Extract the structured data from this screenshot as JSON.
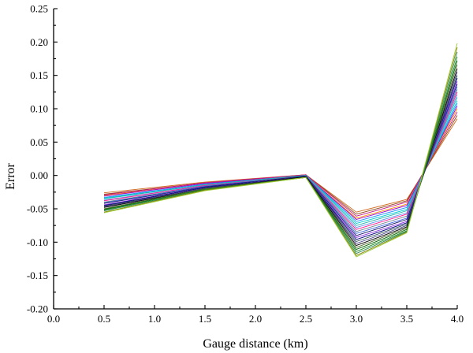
{
  "chart_data": {
    "type": "line",
    "title": "",
    "xlabel": "Gauge distance (km)",
    "ylabel": "Error",
    "xlim": [
      0.0,
      4.0
    ],
    "ylim": [
      -0.2,
      0.25
    ],
    "xticks": [
      "0.0",
      "0.5",
      "1.0",
      "1.5",
      "2.0",
      "2.5",
      "3.0",
      "3.5",
      "4.0"
    ],
    "yticks": [
      "-0.20",
      "-0.15",
      "-0.10",
      "-0.05",
      "0.00",
      "0.05",
      "0.10",
      "0.15",
      "0.20",
      "0.25"
    ],
    "grid": false,
    "legend": false,
    "x": [
      0.5,
      1.5,
      2.5,
      3.0,
      3.5,
      4.0
    ],
    "series": [
      {
        "color": "#d2691e",
        "values": [
          -0.026,
          -0.01,
          0.001,
          -0.055,
          -0.036,
          0.085
        ]
      },
      {
        "color": "#8b4513",
        "values": [
          -0.028,
          -0.011,
          0.001,
          -0.058,
          -0.038,
          0.09
        ]
      },
      {
        "color": "#c71585",
        "values": [
          -0.029,
          -0.011,
          0.001,
          -0.061,
          -0.04,
          0.095
        ]
      },
      {
        "color": "#ff8c00",
        "values": [
          -0.03,
          -0.012,
          0.0,
          -0.064,
          -0.043,
          0.1
        ]
      },
      {
        "color": "#9400d3",
        "values": [
          -0.031,
          -0.012,
          0.0,
          -0.066,
          -0.045,
          0.104
        ]
      },
      {
        "color": "#1e90ff",
        "values": [
          -0.033,
          -0.013,
          0.0,
          -0.069,
          -0.048,
          0.108
        ]
      },
      {
        "color": "#00ced1",
        "values": [
          -0.034,
          -0.014,
          0.0,
          -0.072,
          -0.051,
          0.112
        ]
      },
      {
        "color": "#20b2aa",
        "values": [
          -0.035,
          -0.014,
          0.0,
          -0.075,
          -0.053,
          0.117
        ]
      },
      {
        "color": "#6495ed",
        "values": [
          -0.037,
          -0.015,
          -0.001,
          -0.078,
          -0.056,
          0.121
        ]
      },
      {
        "color": "#ff1493",
        "values": [
          -0.038,
          -0.015,
          -0.001,
          -0.081,
          -0.058,
          0.125
        ]
      },
      {
        "color": "#708090",
        "values": [
          -0.04,
          -0.016,
          -0.001,
          -0.084,
          -0.061,
          0.129
        ]
      },
      {
        "color": "#4169e1",
        "values": [
          -0.041,
          -0.016,
          -0.001,
          -0.087,
          -0.064,
          0.133
        ]
      },
      {
        "color": "#191970",
        "values": [
          -0.042,
          -0.017,
          -0.001,
          -0.09,
          -0.066,
          0.137
        ]
      },
      {
        "color": "#8a2be2",
        "values": [
          -0.044,
          -0.018,
          -0.002,
          -0.093,
          -0.069,
          0.141
        ]
      },
      {
        "color": "#000080",
        "values": [
          -0.045,
          -0.018,
          -0.002,
          -0.096,
          -0.071,
          0.146
        ]
      },
      {
        "color": "#2f4f4f",
        "values": [
          -0.046,
          -0.019,
          -0.002,
          -0.099,
          -0.073,
          0.15
        ]
      },
      {
        "color": "#483d8b",
        "values": [
          -0.047,
          -0.019,
          -0.002,
          -0.102,
          -0.075,
          0.155
        ]
      },
      {
        "color": "#000000",
        "values": [
          -0.048,
          -0.02,
          -0.002,
          -0.105,
          -0.077,
          0.16
        ]
      },
      {
        "color": "#556b2f",
        "values": [
          -0.05,
          -0.02,
          -0.003,
          -0.108,
          -0.079,
          0.166
        ]
      },
      {
        "color": "#006400",
        "values": [
          -0.051,
          -0.021,
          -0.003,
          -0.111,
          -0.081,
          0.172
        ]
      },
      {
        "color": "#228b22",
        "values": [
          -0.052,
          -0.021,
          -0.003,
          -0.114,
          -0.083,
          0.178
        ]
      },
      {
        "color": "#2e8b57",
        "values": [
          -0.053,
          -0.022,
          -0.003,
          -0.117,
          -0.084,
          0.185
        ]
      },
      {
        "color": "#808000",
        "values": [
          -0.055,
          -0.022,
          -0.003,
          -0.12,
          -0.085,
          0.192
        ]
      },
      {
        "color": "#9acd32",
        "values": [
          -0.056,
          -0.023,
          -0.003,
          -0.122,
          -0.086,
          0.198
        ]
      }
    ]
  }
}
